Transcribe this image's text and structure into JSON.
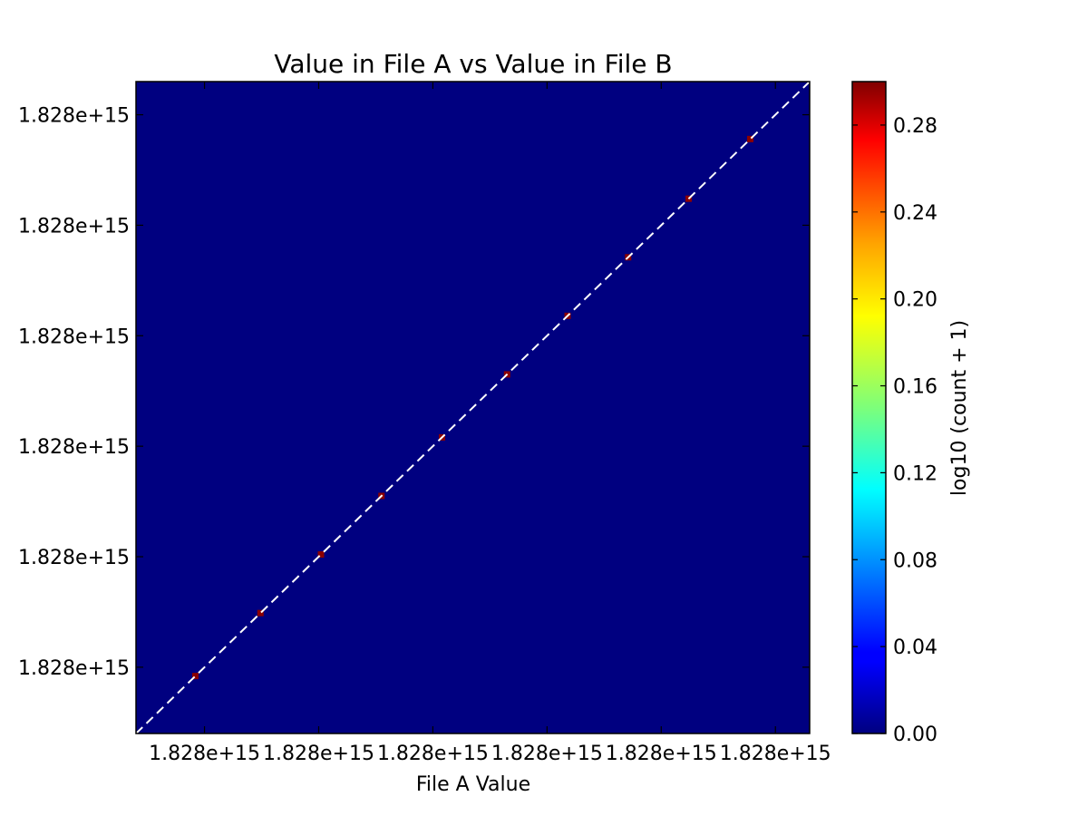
{
  "chart_data": {
    "type": "heatmap",
    "title": "Value in File A vs Value in File B",
    "xlabel": "File A Value",
    "ylabel": "",
    "x_ticks": [
      "1.828e+15",
      "1.828e+15",
      "1.828e+15",
      "1.828e+15",
      "1.828e+15",
      "1.828e+15"
    ],
    "y_ticks": [
      "1.828e+15",
      "1.828e+15",
      "1.828e+15",
      "1.828e+15",
      "1.828e+15",
      "1.828e+15"
    ],
    "x_tick_positions": [
      0.6,
      1.6,
      2.6,
      3.6,
      4.6,
      5.6
    ],
    "y_tick_positions": [
      0.6,
      1.6,
      2.6,
      3.6,
      4.6,
      5.6
    ],
    "axis_range": [
      0,
      5.9
    ],
    "background_color": "#000080",
    "diagonal_line": {
      "style": "dashed",
      "color": "#ffffff"
    },
    "cells": [
      {
        "x": 0.52,
        "y": 0.52,
        "value": 0.3
      },
      {
        "x": 1.09,
        "y": 1.09,
        "value": 0.3
      },
      {
        "x": 1.62,
        "y": 1.62,
        "value": 0.3
      },
      {
        "x": 2.15,
        "y": 2.15,
        "value": 0.3
      },
      {
        "x": 2.68,
        "y": 2.68,
        "value": 0.3
      },
      {
        "x": 3.25,
        "y": 3.25,
        "value": 0.3
      },
      {
        "x": 3.78,
        "y": 3.78,
        "value": 0.3
      },
      {
        "x": 4.31,
        "y": 4.31,
        "value": 0.3
      },
      {
        "x": 4.84,
        "y": 4.84,
        "value": 0.3
      },
      {
        "x": 5.38,
        "y": 5.38,
        "value": 0.3
      }
    ],
    "colorbar": {
      "label": "log10 (count + 1)",
      "min": 0.0,
      "max": 0.3,
      "ticks": [
        {
          "value": 0.0,
          "label": "0.00"
        },
        {
          "value": 0.04,
          "label": "0.04"
        },
        {
          "value": 0.08,
          "label": "0.08"
        },
        {
          "value": 0.12,
          "label": "0.12"
        },
        {
          "value": 0.16,
          "label": "0.16"
        },
        {
          "value": 0.2,
          "label": "0.20"
        },
        {
          "value": 0.24,
          "label": "0.24"
        },
        {
          "value": 0.28,
          "label": "0.28"
        }
      ],
      "colormap": "jet"
    }
  }
}
